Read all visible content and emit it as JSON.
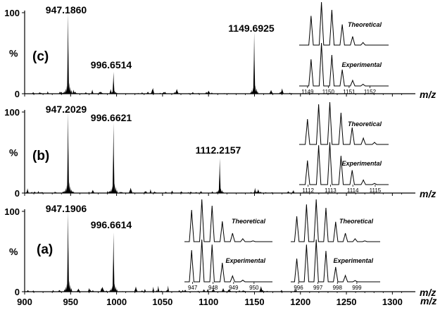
{
  "chart_data": {
    "type": "line",
    "xlabel": "m/z",
    "ylabel": "%",
    "xlim": [
      900,
      1325
    ],
    "x_ticks": [
      900,
      950,
      1000,
      1050,
      1100,
      1150,
      1200,
      1250,
      1300
    ],
    "y_ticks": [
      0,
      100
    ],
    "panels": [
      {
        "label": "(c)",
        "peaks": [
          {
            "mz": 947.186,
            "intensity": 100,
            "label": "947.1860"
          },
          {
            "mz": 996.6514,
            "intensity": 27,
            "label": "996.6514"
          },
          {
            "mz": 1149.6925,
            "intensity": 76,
            "label": "1149.6925"
          }
        ],
        "insets": [
          {
            "xlim": [
              1148.6,
              1152.9
            ],
            "ticks": [
              "1149",
              "1150",
              "1151",
              "1152"
            ],
            "theoretical_label": "Theoretical",
            "experimental_label": "Experimental",
            "theoretical_peaks": [
              [
                1149.17,
                68
              ],
              [
                1149.67,
                100
              ],
              [
                1150.17,
                82
              ],
              [
                1150.67,
                48
              ],
              [
                1151.17,
                20
              ],
              [
                1151.67,
                6
              ]
            ],
            "experimental_peaks": [
              [
                1149.17,
                62
              ],
              [
                1149.67,
                100
              ],
              [
                1150.17,
                72
              ],
              [
                1150.67,
                38
              ],
              [
                1151.17,
                13
              ],
              [
                1151.67,
                4
              ]
            ]
          }
        ]
      },
      {
        "label": "(b)",
        "peaks": [
          {
            "mz": 947.2029,
            "intensity": 100,
            "label": "947.2029"
          },
          {
            "mz": 996.6621,
            "intensity": 87,
            "label": "996.6621"
          },
          {
            "mz": 1112.2157,
            "intensity": 43,
            "label": "1112.2157"
          }
        ],
        "insets": [
          {
            "xlim": [
              1111.6,
              1115.6
            ],
            "ticks": [
              "1112",
              "1113",
              "1114",
              "1115"
            ],
            "theoretical_label": "Theoretical",
            "experimental_label": "Experimental",
            "theoretical_peaks": [
              [
                1111.97,
                60
              ],
              [
                1112.47,
                95
              ],
              [
                1112.97,
                100
              ],
              [
                1113.47,
                75
              ],
              [
                1113.97,
                40
              ],
              [
                1114.47,
                15
              ],
              [
                1114.97,
                5
              ]
            ],
            "experimental_peaks": [
              [
                1111.97,
                57
              ],
              [
                1112.47,
                93
              ],
              [
                1112.97,
                100
              ],
              [
                1113.47,
                68
              ],
              [
                1113.97,
                34
              ],
              [
                1114.47,
                11
              ],
              [
                1114.97,
                3
              ]
            ]
          }
        ]
      },
      {
        "label": "(a)",
        "peaks": [
          {
            "mz": 947.1906,
            "intensity": 100,
            "label": "947.1906"
          },
          {
            "mz": 996.6614,
            "intensity": 74,
            "label": "996.6614"
          }
        ],
        "insets": [
          {
            "xlim": [
              946.6,
              950.9
            ],
            "ticks": [
              "947",
              "948",
              "949",
              "950"
            ],
            "theoretical_label": "Theoretical",
            "experimental_label": "Experimental",
            "theoretical_peaks": [
              [
                946.95,
                75
              ],
              [
                947.45,
                100
              ],
              [
                947.95,
                85
              ],
              [
                948.45,
                48
              ],
              [
                948.95,
                20
              ],
              [
                949.45,
                7
              ],
              [
                949.95,
                2
              ]
            ],
            "experimental_peaks": [
              [
                946.95,
                75
              ],
              [
                947.45,
                100
              ],
              [
                947.95,
                88
              ],
              [
                948.45,
                45
              ],
              [
                948.95,
                14
              ],
              [
                949.45,
                4
              ]
            ]
          },
          {
            "xlim": [
              995.6,
              1000.2
            ],
            "ticks": [
              "996",
              "997",
              "998",
              "999"
            ],
            "theoretical_label": "Theoretical",
            "experimental_label": "Experimental",
            "theoretical_peaks": [
              [
                995.91,
                60
              ],
              [
                996.41,
                88
              ],
              [
                996.91,
                100
              ],
              [
                997.41,
                80
              ],
              [
                997.91,
                47
              ],
              [
                998.41,
                20
              ],
              [
                998.91,
                7
              ],
              [
                999.41,
                2
              ]
            ],
            "experimental_peaks": [
              [
                995.91,
                55
              ],
              [
                996.41,
                88
              ],
              [
                996.91,
                100
              ],
              [
                997.41,
                73
              ],
              [
                997.91,
                35
              ],
              [
                998.41,
                15
              ],
              [
                998.91,
                3
              ]
            ]
          }
        ]
      }
    ]
  }
}
